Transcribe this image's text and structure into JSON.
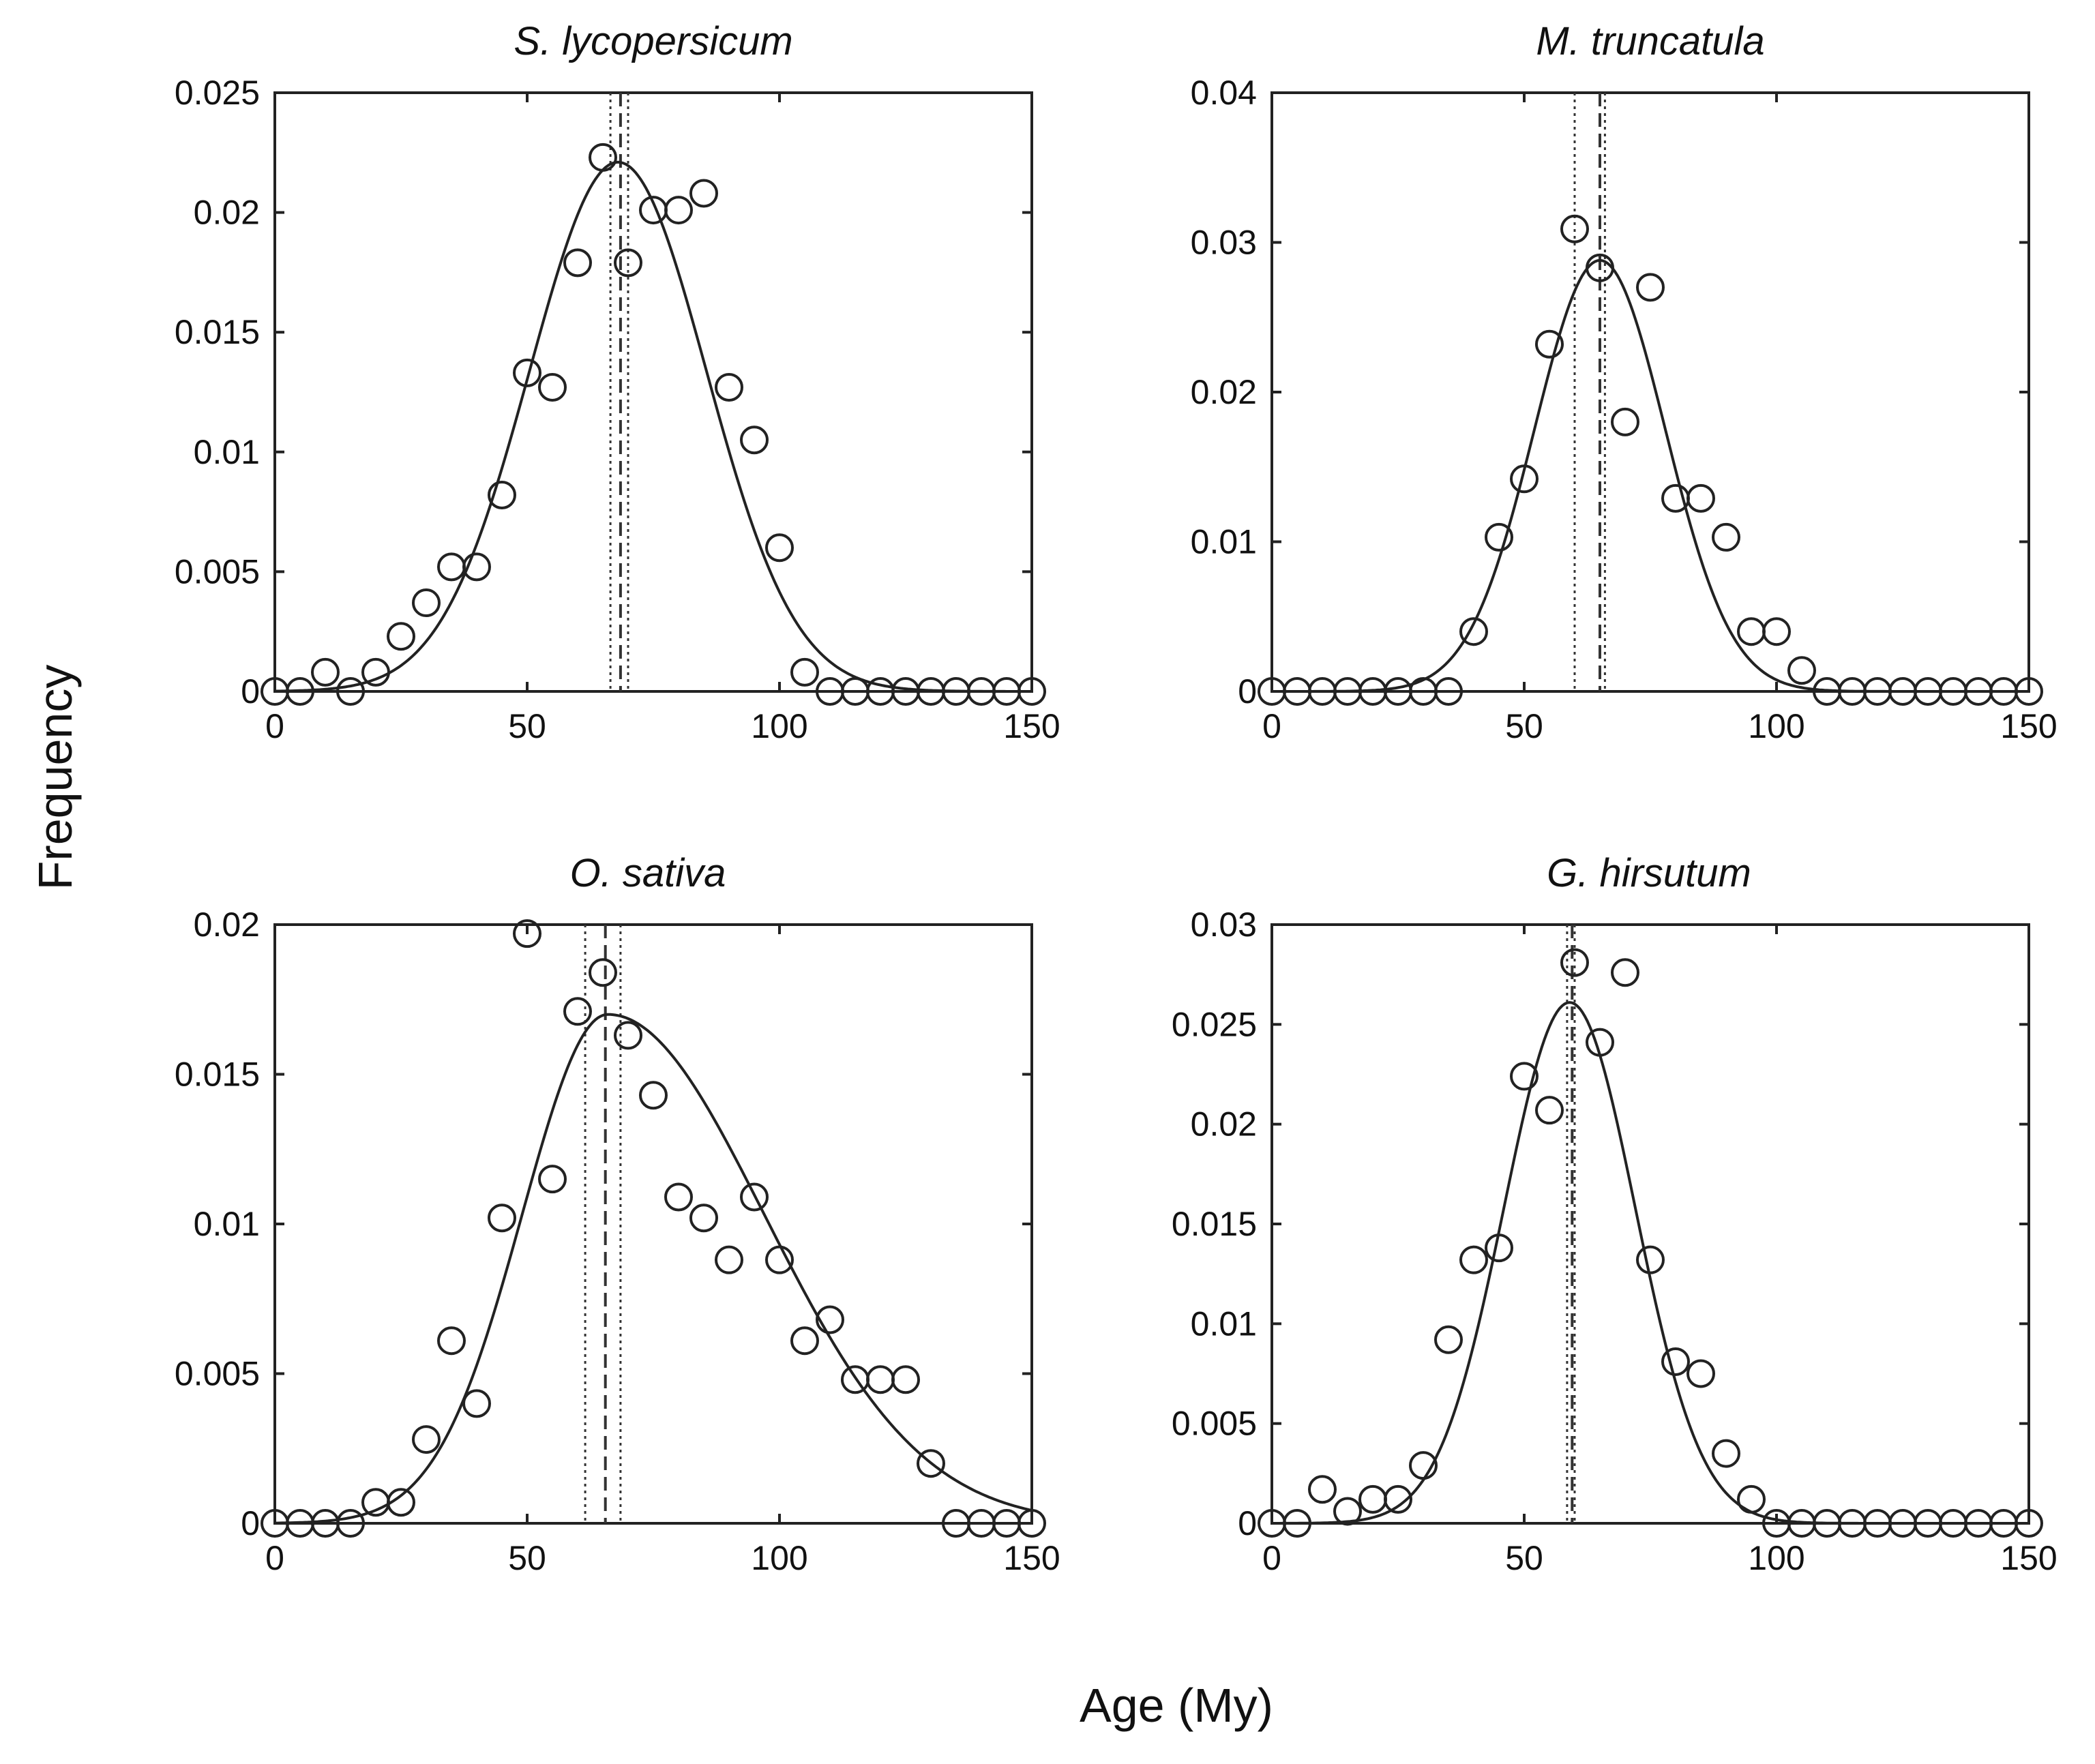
{
  "chart_data": [
    {
      "type": "scatter",
      "id": "sl",
      "title": "S. lycopersicum",
      "xlim": [
        0,
        150
      ],
      "ylim": [
        0,
        0.025
      ],
      "xticks": [
        0,
        50,
        100,
        150
      ],
      "yticks": [
        0,
        0.005,
        0.01,
        0.015,
        0.02,
        0.025
      ],
      "xtick_labels": [
        "0",
        "50",
        "100",
        "150"
      ],
      "ytick_labels": [
        "0",
        "0.005",
        "0.01",
        "0.015",
        "0.02",
        "0.025"
      ],
      "points": {
        "x": [
          0,
          5,
          10,
          15,
          20,
          25,
          30,
          35,
          40,
          45,
          50,
          55,
          60,
          65,
          70,
          75,
          80,
          85,
          90,
          95,
          100,
          105,
          110,
          115,
          120,
          125,
          130,
          135,
          140,
          145,
          150
        ],
        "y": [
          0,
          0,
          0.0008,
          0,
          0.0008,
          0.0023,
          0.0037,
          0.0052,
          0.0052,
          0.0082,
          0.0133,
          0.0127,
          0.0179,
          0.0223,
          0.0179,
          0.0201,
          0.0201,
          0.0208,
          0.0127,
          0.0105,
          0.006,
          0.0008,
          0,
          0,
          0,
          0,
          0,
          0,
          0,
          0,
          0
        ]
      },
      "fit": {
        "model": "gaussian",
        "mean": 68,
        "sd": 17.5,
        "peak": 0.0221
      },
      "vlines": {
        "ci_low": 66.5,
        "ci_high": 70,
        "mean": 68.5
      }
    },
    {
      "type": "scatter",
      "id": "mt",
      "title": "M. truncatula",
      "xlim": [
        0,
        150
      ],
      "ylim": [
        0,
        0.04
      ],
      "xticks": [
        0,
        50,
        100,
        150
      ],
      "yticks": [
        0,
        0.01,
        0.02,
        0.03,
        0.04
      ],
      "xtick_labels": [
        "0",
        "50",
        "100",
        "150"
      ],
      "ytick_labels": [
        "0",
        "0.01",
        "0.02",
        "0.03",
        "0.04"
      ],
      "points": {
        "x": [
          0,
          5,
          10,
          15,
          20,
          25,
          30,
          35,
          40,
          45,
          50,
          55,
          60,
          65,
          70,
          75,
          80,
          85,
          90,
          95,
          100,
          105,
          110,
          115,
          120,
          125,
          130,
          135,
          140,
          145,
          150
        ],
        "y": [
          0,
          0,
          0,
          0,
          0,
          0,
          0,
          0,
          0.004,
          0.0103,
          0.0142,
          0.0232,
          0.0309,
          0.0283,
          0.018,
          0.027,
          0.0129,
          0.0129,
          0.0103,
          0.004,
          0.004,
          0.0014,
          0,
          0,
          0,
          0,
          0,
          0,
          0,
          0,
          0
        ]
      },
      "fit": {
        "model": "gaussian",
        "mean": 65,
        "sd": 13,
        "peak": 0.0288
      },
      "vlines": {
        "ci_low": 60,
        "ci_high": 66,
        "mean": 65
      }
    },
    {
      "type": "scatter",
      "id": "os",
      "title": "O. sativa",
      "xlim": [
        0,
        150
      ],
      "ylim": [
        0,
        0.02
      ],
      "xticks": [
        0,
        50,
        100,
        150
      ],
      "yticks": [
        0,
        0.005,
        0.01,
        0.015,
        0.02
      ],
      "xtick_labels": [
        "0",
        "50",
        "100",
        "150"
      ],
      "ytick_labels": [
        "0",
        "0.005",
        "0.01",
        "0.015",
        "0.02"
      ],
      "points": {
        "x": [
          0,
          5,
          10,
          15,
          20,
          25,
          30,
          35,
          40,
          45,
          50,
          55,
          60,
          65,
          70,
          75,
          80,
          85,
          90,
          95,
          100,
          105,
          110,
          115,
          120,
          125,
          130,
          135,
          140,
          145,
          150
        ],
        "y": [
          0,
          0,
          0,
          0,
          0.0007,
          0.0007,
          0.0028,
          0.0061,
          0.004,
          0.0102,
          0.0197,
          0.0115,
          0.0171,
          0.0184,
          0.0163,
          0.0143,
          0.0109,
          0.0102,
          0.0088,
          0.0109,
          0.0088,
          0.0061,
          0.0068,
          0.0048,
          0.0048,
          0.0048,
          0.002,
          0,
          0,
          0,
          0
        ]
      },
      "fit": {
        "model": "skewed-gaussian",
        "mean": 66,
        "sd_left": 17,
        "sd_right": 31,
        "peak": 0.017
      },
      "vlines": {
        "ci_low": 61.5,
        "ci_high": 68.5,
        "mean": 65.5
      }
    },
    {
      "type": "scatter",
      "id": "gh",
      "title": "G. hirsutum",
      "xlim": [
        0,
        150
      ],
      "ylim": [
        0,
        0.03
      ],
      "xticks": [
        0,
        50,
        100,
        150
      ],
      "yticks": [
        0,
        0.005,
        0.01,
        0.015,
        0.02,
        0.025,
        0.03
      ],
      "xtick_labels": [
        "0",
        "50",
        "100",
        "150"
      ],
      "ytick_labels": [
        "0",
        "0.005",
        "0.01",
        "0.015",
        "0.02",
        "0.025",
        "0.03"
      ],
      "points": {
        "x": [
          0,
          5,
          10,
          15,
          20,
          25,
          30,
          35,
          40,
          45,
          50,
          55,
          60,
          65,
          70,
          75,
          80,
          85,
          90,
          95,
          100,
          105,
          110,
          115,
          120,
          125,
          130,
          135,
          140,
          145,
          150
        ],
        "y": [
          0,
          0,
          0.0017,
          0.0006,
          0.0012,
          0.0012,
          0.0029,
          0.0092,
          0.0132,
          0.0138,
          0.0224,
          0.0207,
          0.0281,
          0.0241,
          0.0276,
          0.0132,
          0.0081,
          0.0075,
          0.0035,
          0.0012,
          0,
          0,
          0,
          0,
          0,
          0,
          0,
          0,
          0,
          0,
          0
        ]
      },
      "fit": {
        "model": "gaussian",
        "mean": 59,
        "sd": 13,
        "peak": 0.0261
      },
      "vlines": {
        "ci_low": 58.5,
        "ci_high": 60,
        "mean": 59.5
      }
    }
  ],
  "figure": {
    "xlabel": "Age (My)",
    "ylabel": "Frequency"
  }
}
